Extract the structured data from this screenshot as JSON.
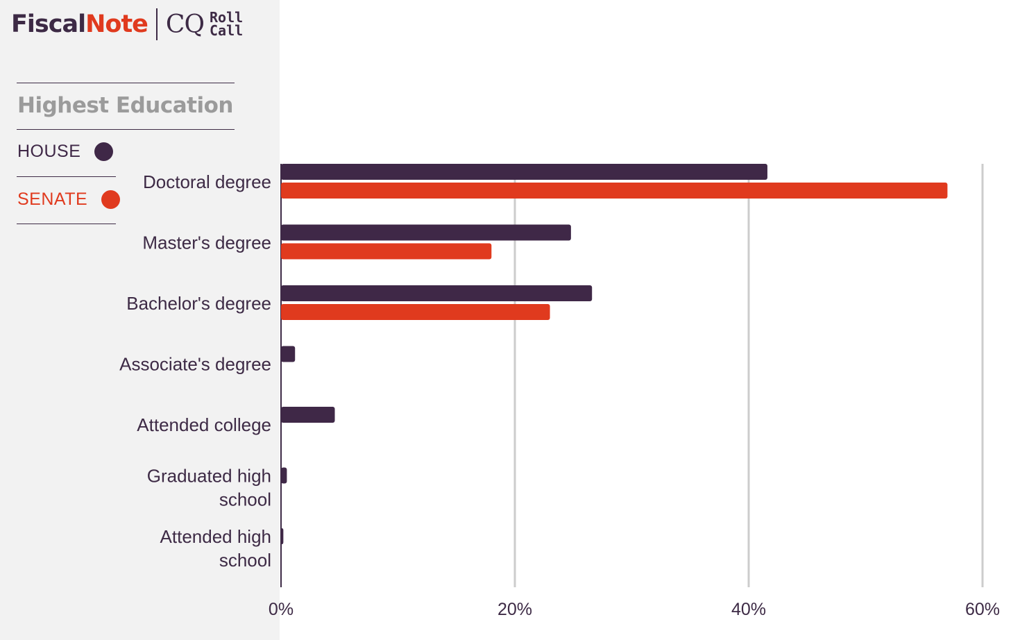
{
  "brand": {
    "fiscal": "Fiscal",
    "note": "Note",
    "cq": "CQ",
    "roll": "Roll",
    "call": "Call"
  },
  "sidebar": {
    "filter_title": "Highest Education",
    "legend": [
      {
        "label": "HOUSE",
        "color": "#3f2847"
      },
      {
        "label": "SENATE",
        "color": "#e03a1e"
      }
    ]
  },
  "colors": {
    "house": "#3f2847",
    "senate": "#e03a1e",
    "grid": "#cccccc",
    "text": "#3d2a45"
  },
  "chart_data": {
    "type": "bar",
    "orientation": "horizontal",
    "categories": [
      [
        "Doctoral degree"
      ],
      [
        "Master's degree"
      ],
      [
        "Bachelor's degree"
      ],
      [
        "Associate's degree"
      ],
      [
        "Attended college"
      ],
      [
        "Graduated high",
        "school"
      ],
      [
        "Attended high",
        "school"
      ]
    ],
    "series": [
      {
        "name": "HOUSE",
        "color": "#3f2847",
        "values": [
          41.6,
          24.8,
          26.6,
          1.2,
          4.6,
          0.5,
          0.2
        ]
      },
      {
        "name": "SENATE",
        "color": "#e03a1e",
        "values": [
          57.0,
          18.0,
          23.0,
          0,
          0,
          0,
          0
        ]
      }
    ],
    "xlim": [
      0,
      60
    ],
    "xticks": [
      "0%",
      "20%",
      "40%",
      "60%"
    ],
    "xtick_values": [
      0,
      20,
      40,
      60
    ],
    "grid": true,
    "legend_position": "left"
  }
}
